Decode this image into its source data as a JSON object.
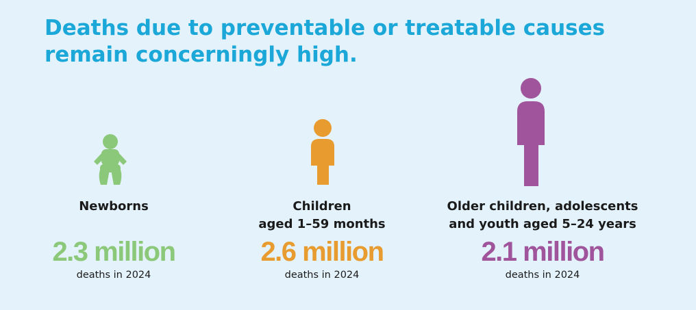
{
  "title": [
    "Deaths due to preventable or treatable causes",
    "remain concerningly high."
  ],
  "groups": [
    {
      "label": [
        "Newborns"
      ],
      "value": "2.3 million",
      "note": "deaths in 2024",
      "color": "#8cc87a"
    },
    {
      "label": [
        "Children",
        "aged 1–59 months"
      ],
      "value": "2.6 million",
      "note": "deaths in 2024",
      "color": "#e89b2e"
    },
    {
      "label": [
        "Older children, adolescents",
        "and youth aged 5–24 years"
      ],
      "value": "2.1 million",
      "note": "deaths in 2024",
      "color": "#a0549b"
    }
  ]
}
